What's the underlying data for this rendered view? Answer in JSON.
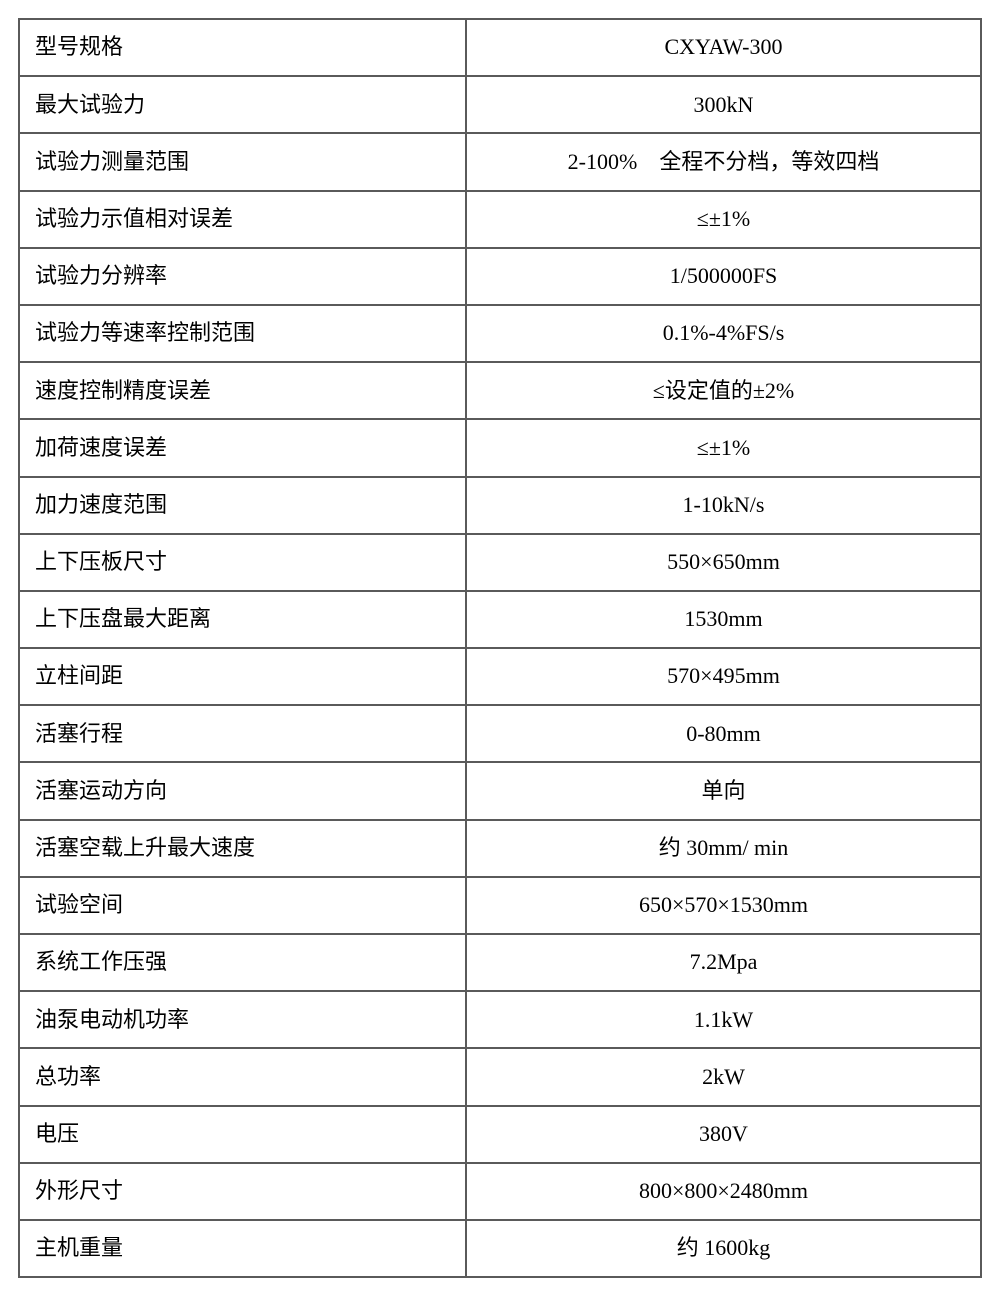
{
  "table": {
    "border_color": "#5a5a5a",
    "text_color": "#000000",
    "background_color": "#ffffff",
    "columns": [
      "label",
      "value"
    ],
    "rows": [
      {
        "label": "型号规格",
        "value": "CXYAW-300"
      },
      {
        "label": "最大试验力",
        "value": "300kN"
      },
      {
        "label": "试验力测量范围",
        "value": "2-100%　全程不分档，等效四档"
      },
      {
        "label": "试验力示值相对误差",
        "value": "≤±1%"
      },
      {
        "label": "试验力分辨率",
        "value": "1/500000FS"
      },
      {
        "label": "试验力等速率控制范围",
        "value": "0.1%-4%FS/s"
      },
      {
        "label": "速度控制精度误差",
        "value": "≤设定值的±2%"
      },
      {
        "label": "加荷速度误差",
        "value": "≤±1%"
      },
      {
        "label": "加力速度范围",
        "value": "1-10kN/s"
      },
      {
        "label": "上下压板尺寸",
        "value": "550×650mm"
      },
      {
        "label": "上下压盘最大距离",
        "value": "1530mm"
      },
      {
        "label": "立柱间距",
        "value": "570×495mm"
      },
      {
        "label": "活塞行程",
        "value": "0-80mm"
      },
      {
        "label": "活塞运动方向",
        "value": "单向"
      },
      {
        "label": "活塞空载上升最大速度",
        "value": "约 30mm/ min"
      },
      {
        "label": "试验空间",
        "value": "650×570×1530mm"
      },
      {
        "label": "系统工作压强",
        "value": "7.2Mpa"
      },
      {
        "label": "油泵电动机功率",
        "value": "1.1kW"
      },
      {
        "label": "总功率",
        "value": "2kW"
      },
      {
        "label": "电压",
        "value": "380V"
      },
      {
        "label": "外形尺寸",
        "value": "800×800×2480mm"
      },
      {
        "label": "主机重量",
        "value": "约 1600kg"
      }
    ]
  }
}
